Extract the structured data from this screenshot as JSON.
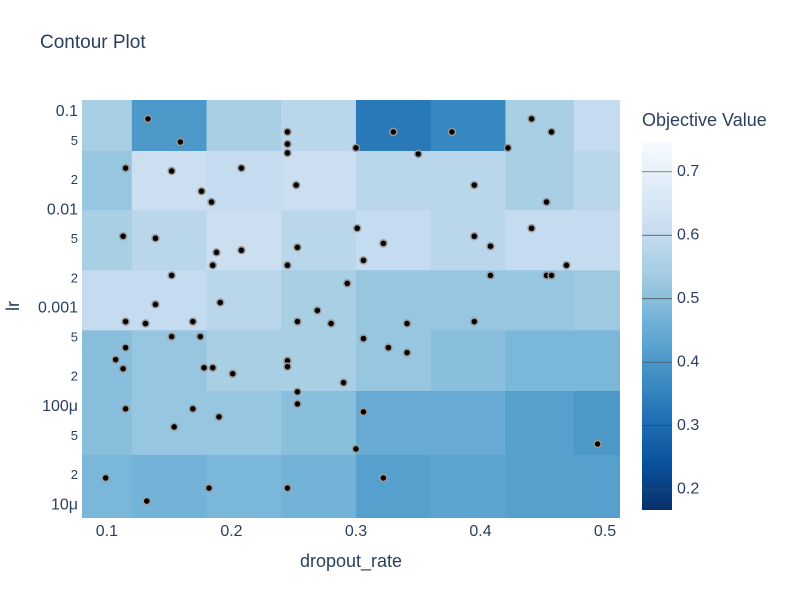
{
  "chart_data": {
    "type": "contour",
    "title": "Contour Plot",
    "x_label": "dropout_rate",
    "y_label": "lr",
    "colorbar_title": "Objective Value",
    "log_y": true,
    "xlim": [
      0.08,
      0.512
    ],
    "ylim": [
      7.4e-06,
      0.132
    ],
    "xticks": [
      0.1,
      0.2,
      0.3,
      0.4,
      0.5
    ],
    "yticks": [
      0.1,
      {
        "value": 0.05,
        "label": "5"
      },
      {
        "value": 0.02,
        "label": "2"
      },
      0.01,
      {
        "value": 0.005,
        "label": "5"
      },
      {
        "value": 0.002,
        "label": "2"
      },
      0.001,
      {
        "value": 0.0005,
        "label": "5"
      },
      {
        "value": 0.0002,
        "label": "2"
      },
      {
        "value": 0.0001,
        "label": "100μ"
      },
      {
        "value": 5e-05,
        "label": "5"
      },
      {
        "value": 2e-05,
        "label": "2"
      },
      {
        "value": 1e-05,
        "label": "10μ"
      }
    ],
    "zlim": [
      0.167,
      0.747
    ],
    "zticks": [
      0.2,
      0.3,
      0.4,
      0.5,
      0.6,
      0.7
    ],
    "colorscale": [
      "#08306b",
      "#08519c",
      "#2171b5",
      "#4292c6",
      "#6baed6",
      "#9ecae1",
      "#c6dbef",
      "#deebf7",
      "#f7fbff"
    ],
    "contour": {
      "x": [
        0.09,
        0.15,
        0.21,
        0.27,
        0.33,
        0.39,
        0.45,
        0.5
      ],
      "y": [
        0.08,
        0.02,
        0.005,
        0.0012,
        0.0003,
        7e-05,
        1.5e-05
      ],
      "z": [
        [
          0.55,
          0.4,
          0.55,
          0.58,
          0.33,
          0.36,
          0.55,
          0.6
        ],
        [
          0.52,
          0.62,
          0.6,
          0.62,
          0.58,
          0.58,
          0.55,
          0.58
        ],
        [
          0.55,
          0.58,
          0.62,
          0.58,
          0.6,
          0.58,
          0.6,
          0.6
        ],
        [
          0.6,
          0.6,
          0.58,
          0.55,
          0.52,
          0.52,
          0.52,
          0.53
        ],
        [
          0.5,
          0.52,
          0.55,
          0.55,
          0.52,
          0.5,
          0.48,
          0.48
        ],
        [
          0.5,
          0.52,
          0.52,
          0.5,
          0.45,
          0.45,
          0.42,
          0.4
        ],
        [
          0.48,
          0.47,
          0.48,
          0.47,
          0.42,
          0.43,
          0.42,
          0.42
        ]
      ]
    },
    "points": {
      "x": [
        0.133,
        0.159,
        0.115,
        0.152,
        0.176,
        0.184,
        0.208,
        0.245,
        0.245,
        0.245,
        0.252,
        0.3,
        0.33,
        0.35,
        0.377,
        0.395,
        0.422,
        0.441,
        0.457,
        0.453,
        0.441,
        0.395,
        0.408,
        0.322,
        0.301,
        0.306,
        0.253,
        0.208,
        0.188,
        0.185,
        0.245,
        0.113,
        0.139,
        0.152,
        0.139,
        0.191,
        0.169,
        0.115,
        0.131,
        0.175,
        0.152,
        0.253,
        0.269,
        0.28,
        0.293,
        0.341,
        0.395,
        0.306,
        0.326,
        0.341,
        0.408,
        0.453,
        0.457,
        0.469,
        0.107,
        0.115,
        0.113,
        0.178,
        0.185,
        0.201,
        0.245,
        0.245,
        0.29,
        0.253,
        0.253,
        0.306,
        0.115,
        0.169,
        0.19,
        0.154,
        0.3,
        0.494,
        0.099,
        0.322,
        0.132,
        0.182,
        0.245
      ],
      "y": [
        0.0849,
        0.0494,
        0.0268,
        0.025,
        0.0156,
        0.0121,
        0.0268,
        0.0625,
        0.0471,
        0.0382,
        0.018,
        0.043,
        0.0625,
        0.0373,
        0.0625,
        0.018,
        0.043,
        0.0849,
        0.0625,
        0.0121,
        0.00655,
        0.00543,
        0.0043,
        0.0046,
        0.00655,
        0.00309,
        0.00419,
        0.00391,
        0.00372,
        0.00275,
        0.00275,
        0.00543,
        0.00518,
        0.00217,
        0.0011,
        0.00115,
        0.000736,
        0.000736,
        0.000703,
        0.000518,
        0.000518,
        0.000736,
        0.000955,
        0.000703,
        0.0018,
        0.000703,
        0.000736,
        0.000494,
        0.0004,
        0.000356,
        0.00217,
        0.00217,
        0.00217,
        0.00275,
        0.000302,
        0.0004,
        0.000244,
        0.00025,
        0.00025,
        0.000217,
        0.000294,
        0.000256,
        0.000176,
        0.000142,
        0.000107,
        8.89e-05,
        9.55e-05,
        9.55e-05,
        7.91e-05,
        6.25e-05,
        3.73e-05,
        4.19e-05,
        1.89e-05,
        1.89e-05,
        1.1e-05,
        1.49e-05,
        1.49e-05
      ]
    }
  }
}
